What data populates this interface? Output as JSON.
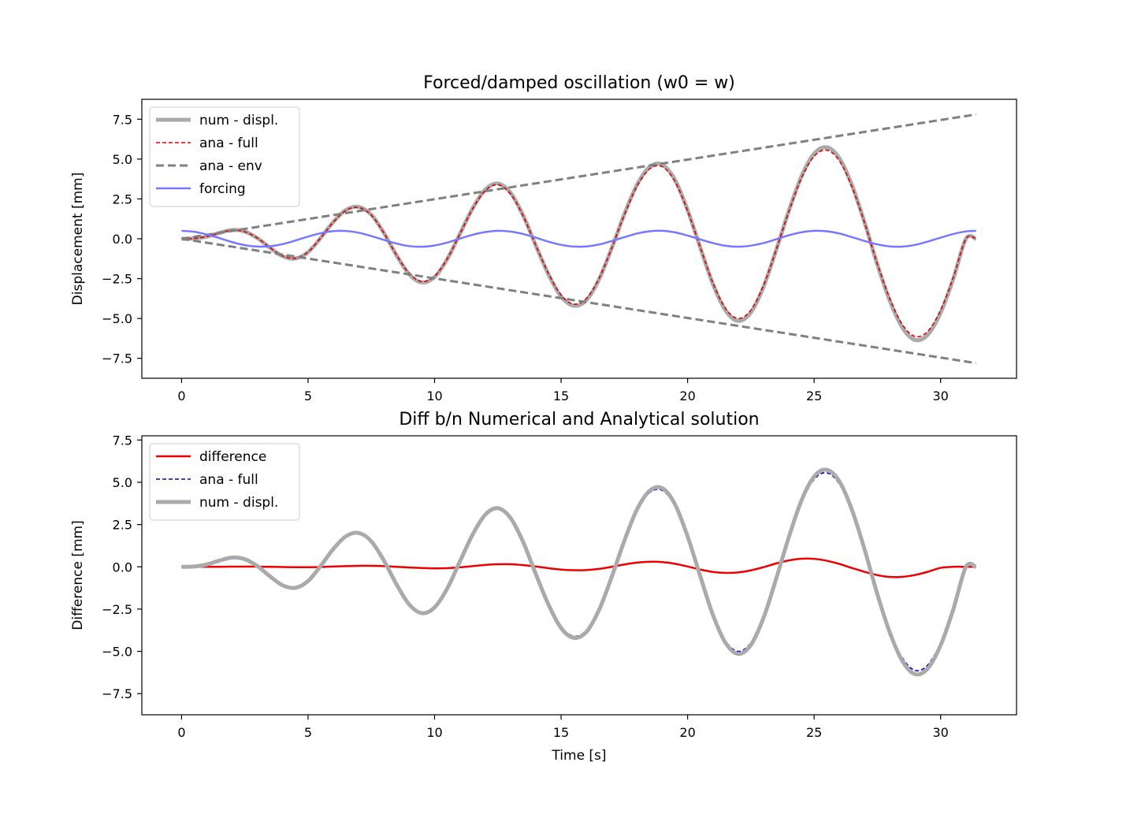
{
  "chart_data": [
    {
      "type": "line",
      "title": "Forced/damped oscillation (w0 = w)",
      "xlabel": "",
      "ylabel": "Displacement [mm]",
      "xlim": [
        -1.57,
        33.0
      ],
      "ylim": [
        -8.75,
        8.75
      ],
      "xticks": [
        0,
        5,
        10,
        15,
        20,
        25,
        30
      ],
      "xtick_labels": [
        "0",
        "5",
        "10",
        "15",
        "20",
        "25",
        "30"
      ],
      "yticks": [
        7.5,
        5.0,
        2.5,
        0.0,
        -2.5,
        -5.0,
        -7.5
      ],
      "ytick_labels": [
        "7.5",
        "5.0",
        "2.5",
        "0.0",
        "−2.5",
        "−5.0",
        "−7.5"
      ],
      "grid": false,
      "legend_position": "top-left",
      "series": [
        {
          "name": "num - displ.",
          "color": "#aaaaaa",
          "style": "solid-thick",
          "x": [
            0,
            0.5,
            1,
            1.5,
            2,
            2.5,
            3,
            3.5,
            4,
            4.5,
            5,
            5.5,
            6,
            6.5,
            7,
            7.5,
            8,
            8.5,
            9,
            9.5,
            10,
            10.5,
            11,
            11.5,
            12,
            12.5,
            13,
            13.5,
            14,
            14.5,
            15,
            15.5,
            16,
            16.5,
            17,
            17.5,
            18,
            18.5,
            19,
            19.5,
            20,
            20.5,
            21,
            21.5,
            22,
            22.5,
            23,
            23.5,
            24,
            24.5,
            25,
            25.5,
            26,
            26.5,
            27,
            27.5,
            28,
            28.5,
            29,
            29.5,
            30,
            30.5,
            31,
            31.4
          ],
          "y": [
            0,
            0.02,
            0.14,
            0.37,
            0.55,
            0.45,
            0.04,
            -0.57,
            -1.1,
            -1.24,
            -0.84,
            0.06,
            1.06,
            1.81,
            2.0,
            1.51,
            0.36,
            -1.05,
            -2.23,
            -2.74,
            -2.4,
            -1.28,
            0.31,
            1.9,
            3.08,
            3.47,
            2.89,
            1.47,
            -0.42,
            -2.23,
            -3.62,
            -4.2,
            -3.85,
            -2.55,
            -0.6,
            1.54,
            3.39,
            4.5,
            4.65,
            3.7,
            1.8,
            -0.55,
            -2.84,
            -4.5,
            -5.15,
            -4.62,
            -3.02,
            -0.71,
            1.75,
            3.92,
            5.34,
            5.74,
            5.05,
            3.35,
            1.0,
            -1.62,
            -3.92,
            -5.6,
            -6.35,
            -6.0,
            -4.64,
            -2.52,
            -0.0,
            0.0
          ]
        },
        {
          "name": "ana - full",
          "color": "#dd0000",
          "style": "dashed",
          "x": [
            0,
            0.5,
            1,
            1.5,
            2,
            2.5,
            3,
            3.5,
            4,
            4.5,
            5,
            5.5,
            6,
            6.5,
            7,
            7.5,
            8,
            8.5,
            9,
            9.5,
            10,
            10.5,
            11,
            11.5,
            12,
            12.5,
            13,
            13.5,
            14,
            14.5,
            15,
            15.5,
            16,
            16.5,
            17,
            17.5,
            18,
            18.5,
            19,
            19.5,
            20,
            20.5,
            21,
            21.5,
            22,
            22.5,
            23,
            23.5,
            24,
            24.5,
            25,
            25.5,
            26,
            26.5,
            27,
            27.5,
            28,
            28.5,
            29,
            29.5,
            30,
            30.5,
            31,
            31.4
          ],
          "y": [
            0,
            0.02,
            0.14,
            0.37,
            0.54,
            0.44,
            0.04,
            -0.56,
            -1.08,
            -1.22,
            -0.83,
            0.06,
            1.04,
            1.78,
            1.96,
            1.48,
            0.35,
            -1.03,
            -2.18,
            -2.68,
            -2.35,
            -1.25,
            0.3,
            1.86,
            3.01,
            3.39,
            2.82,
            1.43,
            -0.41,
            -2.17,
            -3.53,
            -4.1,
            -3.75,
            -2.48,
            -0.58,
            1.5,
            3.3,
            4.38,
            4.52,
            3.6,
            1.75,
            -0.53,
            -2.76,
            -4.37,
            -5.0,
            -4.48,
            -2.93,
            -0.69,
            1.7,
            3.8,
            5.17,
            5.56,
            4.89,
            3.24,
            0.97,
            -1.57,
            -3.79,
            -5.41,
            -6.13,
            -5.79,
            -4.48,
            -2.43,
            -0.0,
            0.0
          ]
        },
        {
          "name": "ana - env",
          "color": "#808080",
          "style": "dashed-thick",
          "x": [
            0,
            31.4
          ],
          "y": [
            0,
            7.8
          ]
        },
        {
          "name": "forcing",
          "color": "#7777ff",
          "style": "solid",
          "x": [
            0,
            0.5,
            1,
            1.5,
            2,
            2.5,
            3,
            3.5,
            4,
            4.5,
            5,
            5.5,
            6,
            6.5,
            7,
            7.5,
            8,
            8.5,
            9,
            9.5,
            10,
            10.5,
            11,
            11.5,
            12,
            12.5,
            13,
            13.5,
            14,
            14.5,
            15,
            15.5,
            16,
            16.5,
            17,
            17.5,
            18,
            18.5,
            19,
            19.5,
            20,
            20.5,
            21,
            21.5,
            22,
            22.5,
            23,
            23.5,
            24,
            24.5,
            25,
            25.5,
            26,
            26.5,
            27,
            27.5,
            28,
            28.5,
            29,
            29.5,
            30,
            30.5,
            31,
            31.4
          ],
          "y": [
            0.5,
            0.44,
            0.27,
            0.04,
            -0.21,
            -0.4,
            -0.49,
            -0.47,
            -0.33,
            -0.11,
            0.14,
            0.35,
            0.48,
            0.49,
            0.38,
            0.17,
            -0.07,
            -0.3,
            -0.46,
            -0.5,
            -0.42,
            -0.24,
            0.01,
            0.25,
            0.42,
            0.5,
            0.45,
            0.3,
            0.07,
            -0.18,
            -0.38,
            -0.49,
            -0.48,
            -0.36,
            -0.14,
            0.1,
            0.33,
            0.47,
            0.5,
            0.4,
            0.2,
            -0.04,
            -0.27,
            -0.44,
            -0.5,
            -0.43,
            -0.27,
            -0.03,
            0.22,
            0.41,
            0.5,
            0.47,
            0.33,
            0.1,
            -0.14,
            -0.35,
            -0.48,
            -0.49,
            -0.38,
            -0.17,
            0.07,
            0.3,
            0.46,
            0.5
          ]
        }
      ]
    },
    {
      "type": "line",
      "title": "Diff b/n Numerical and Analytical solution",
      "xlabel": "Time [s]",
      "ylabel": "Difference [mm]",
      "xlim": [
        -1.57,
        33.0
      ],
      "ylim": [
        -8.75,
        7.75
      ],
      "xticks": [
        0,
        5,
        10,
        15,
        20,
        25,
        30
      ],
      "xtick_labels": [
        "0",
        "5",
        "10",
        "15",
        "20",
        "25",
        "30"
      ],
      "yticks": [
        7.5,
        5.0,
        2.5,
        0.0,
        -2.5,
        -5.0,
        -7.5
      ],
      "ytick_labels": [
        "7.5",
        "5.0",
        "2.5",
        "0.0",
        "−2.5",
        "−5.0",
        "−7.5"
      ],
      "grid": false,
      "legend_position": "top-left",
      "series": [
        {
          "name": "difference",
          "color": "#ee0000",
          "style": "solid",
          "x": [
            0,
            0.5,
            1,
            1.5,
            2,
            2.5,
            3,
            3.5,
            4,
            4.5,
            5,
            5.5,
            6,
            6.5,
            7,
            7.5,
            8,
            8.5,
            9,
            9.5,
            10,
            10.5,
            11,
            11.5,
            12,
            12.5,
            13,
            13.5,
            14,
            14.5,
            15,
            15.5,
            16,
            16.5,
            17,
            17.5,
            18,
            18.5,
            19,
            19.5,
            20,
            20.5,
            21,
            21.5,
            22,
            22.5,
            23,
            23.5,
            24,
            24.5,
            25,
            25.5,
            26,
            26.5,
            27,
            27.5,
            28,
            28.5,
            29,
            29.5,
            30,
            30.5,
            31,
            31.4
          ],
          "y": [
            0,
            0,
            0,
            0,
            0.01,
            0.01,
            0.01,
            0.0,
            -0.01,
            -0.02,
            -0.02,
            -0.01,
            0.02,
            0.04,
            0.06,
            0.06,
            0.04,
            0.0,
            -0.04,
            -0.07,
            -0.09,
            -0.08,
            -0.03,
            0.04,
            0.11,
            0.15,
            0.15,
            0.1,
            0.02,
            -0.08,
            -0.16,
            -0.2,
            -0.19,
            -0.12,
            0.0,
            0.14,
            0.25,
            0.3,
            0.28,
            0.18,
            0.02,
            -0.16,
            -0.3,
            -0.36,
            -0.33,
            -0.21,
            -0.02,
            0.2,
            0.38,
            0.48,
            0.47,
            0.36,
            0.17,
            -0.07,
            -0.3,
            -0.49,
            -0.6,
            -0.59,
            -0.48,
            -0.29,
            -0.06,
            0.0,
            0.0,
            0.0
          ]
        },
        {
          "name": "ana - full",
          "color": "#0000cc",
          "style": "dashed",
          "x": [
            0,
            0.5,
            1,
            1.5,
            2,
            2.5,
            3,
            3.5,
            4,
            4.5,
            5,
            5.5,
            6,
            6.5,
            7,
            7.5,
            8,
            8.5,
            9,
            9.5,
            10,
            10.5,
            11,
            11.5,
            12,
            12.5,
            13,
            13.5,
            14,
            14.5,
            15,
            15.5,
            16,
            16.5,
            17,
            17.5,
            18,
            18.5,
            19,
            19.5,
            20,
            20.5,
            21,
            21.5,
            22,
            22.5,
            23,
            23.5,
            24,
            24.5,
            25,
            25.5,
            26,
            26.5,
            27,
            27.5,
            28,
            28.5,
            29,
            29.5,
            30,
            30.5,
            31,
            31.4
          ],
          "y": [
            0,
            0.02,
            0.14,
            0.37,
            0.54,
            0.44,
            0.04,
            -0.56,
            -1.08,
            -1.22,
            -0.83,
            0.06,
            1.04,
            1.78,
            1.96,
            1.48,
            0.35,
            -1.03,
            -2.18,
            -2.68,
            -2.35,
            -1.25,
            0.3,
            1.86,
            3.01,
            3.39,
            2.82,
            1.43,
            -0.41,
            -2.17,
            -3.53,
            -4.1,
            -3.75,
            -2.48,
            -0.58,
            1.5,
            3.3,
            4.38,
            4.52,
            3.6,
            1.75,
            -0.53,
            -2.76,
            -4.37,
            -5.0,
            -4.48,
            -2.93,
            -0.69,
            1.7,
            3.8,
            5.17,
            5.56,
            4.89,
            3.24,
            0.97,
            -1.57,
            -3.79,
            -5.41,
            -6.13,
            -5.79,
            -4.48,
            -2.43,
            -0.0,
            0.0
          ]
        },
        {
          "name": "num - displ.",
          "color": "#aaaaaa",
          "style": "solid-thick",
          "x": [
            0,
            0.5,
            1,
            1.5,
            2,
            2.5,
            3,
            3.5,
            4,
            4.5,
            5,
            5.5,
            6,
            6.5,
            7,
            7.5,
            8,
            8.5,
            9,
            9.5,
            10,
            10.5,
            11,
            11.5,
            12,
            12.5,
            13,
            13.5,
            14,
            14.5,
            15,
            15.5,
            16,
            16.5,
            17,
            17.5,
            18,
            18.5,
            19,
            19.5,
            20,
            20.5,
            21,
            21.5,
            22,
            22.5,
            23,
            23.5,
            24,
            24.5,
            25,
            25.5,
            26,
            26.5,
            27,
            27.5,
            28,
            28.5,
            29,
            29.5,
            30,
            30.5,
            31,
            31.4
          ],
          "y": [
            0,
            0.02,
            0.14,
            0.37,
            0.55,
            0.45,
            0.04,
            -0.57,
            -1.1,
            -1.24,
            -0.84,
            0.06,
            1.06,
            1.81,
            2.0,
            1.51,
            0.36,
            -1.05,
            -2.23,
            -2.74,
            -2.4,
            -1.28,
            0.31,
            1.9,
            3.08,
            3.47,
            2.89,
            1.47,
            -0.42,
            -2.23,
            -3.62,
            -4.2,
            -3.85,
            -2.55,
            -0.6,
            1.54,
            3.39,
            4.5,
            4.65,
            3.7,
            1.8,
            -0.55,
            -2.84,
            -4.5,
            -5.15,
            -4.62,
            -3.02,
            -0.71,
            1.75,
            3.92,
            5.34,
            5.74,
            5.05,
            3.35,
            1.0,
            -1.62,
            -3.92,
            -5.6,
            -6.35,
            -6.0,
            -4.64,
            -2.52,
            -0.0,
            0.0
          ]
        }
      ]
    }
  ]
}
